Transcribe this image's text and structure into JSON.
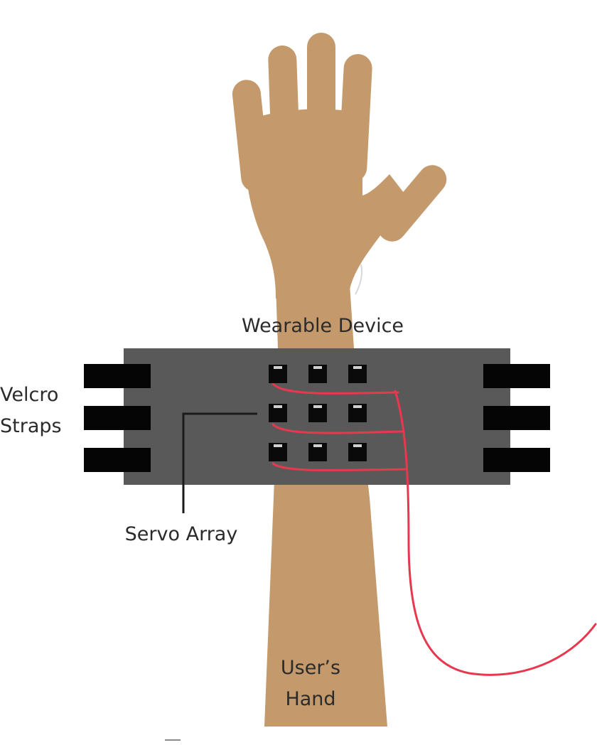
{
  "labels": {
    "wearable_device": "Wearable Device",
    "velcro_line1": "Velcro",
    "velcro_line2": "Straps",
    "servo_array": "Servo Array",
    "hand_line1": "User’s",
    "hand_line2": "Hand"
  },
  "colors": {
    "skin": "#c49a6c",
    "device_band": "#595959",
    "strap": "#050505",
    "servo": "#0a0a0a",
    "wire": "#e8384f",
    "leader_line": "#1a1a1a",
    "text": "#2b2b2b"
  },
  "servo_grid": {
    "rows": 3,
    "columns": 3
  },
  "straps": {
    "per_side": 3
  }
}
